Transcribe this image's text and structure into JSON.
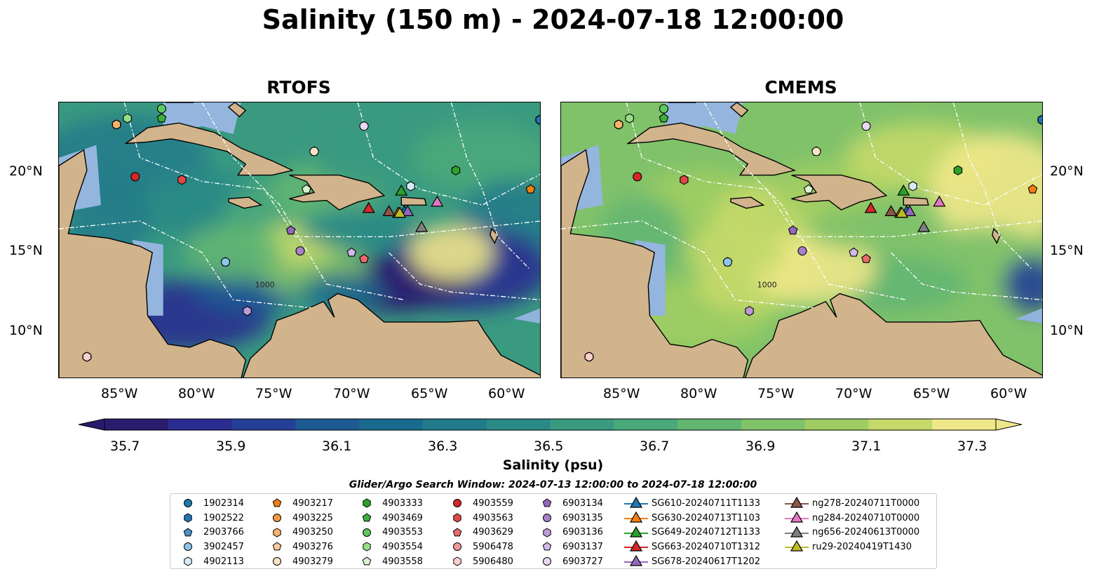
{
  "title": "Salinity (150 m) - 2024-07-18 12:00:00",
  "panels": [
    {
      "title": "RTOFS",
      "key": "rtofs"
    },
    {
      "title": "CMEMS",
      "key": "cmems"
    }
  ],
  "x_ticks": [
    "85°W",
    "80°W",
    "75°W",
    "70°W",
    "65°W",
    "60°W"
  ],
  "y_ticks": [
    "20°N",
    "15°N",
    "10°N"
  ],
  "contour_label": "1000",
  "colorbar": {
    "label": "Salinity (psu)",
    "range": [
      35.7,
      37.3
    ],
    "ticks": [
      "35.7",
      "35.9",
      "36.1",
      "36.3",
      "36.5",
      "36.7",
      "36.9",
      "37.1",
      "37.3"
    ],
    "colors": [
      "#2a1b6e",
      "#2a2d8f",
      "#253f96",
      "#1d5a92",
      "#1a6a8e",
      "#217b8a",
      "#2a8a86",
      "#399a80",
      "#4aa97a",
      "#63b672",
      "#80c26a",
      "#a0cd63",
      "#c4d96a",
      "#efe88a"
    ],
    "extend": "both"
  },
  "search_window": "Glider/Argo Search Window: 2024-07-13 12:00:00 to 2024-07-18 12:00:00",
  "legend": {
    "columns": [
      [
        {
          "label": "1902314",
          "marker": "circle",
          "color": "#1f77b4"
        },
        {
          "label": "1902522",
          "marker": "hexagon",
          "color": "#1f77b4"
        },
        {
          "label": "2903766",
          "marker": "pentagon",
          "color": "#4a90c9"
        },
        {
          "label": "3902457",
          "marker": "circle",
          "color": "#8ec3ea"
        },
        {
          "label": "4902113",
          "marker": "hexagon",
          "color": "#d6ebf8"
        }
      ],
      [
        {
          "label": "4903217",
          "marker": "pentagon",
          "color": "#f07f0e"
        },
        {
          "label": "4903225",
          "marker": "circle",
          "color": "#f59a3c"
        },
        {
          "label": "4903250",
          "marker": "hexagon",
          "color": "#f8b46a"
        },
        {
          "label": "4903276",
          "marker": "pentagon",
          "color": "#fbc997"
        },
        {
          "label": "4903279",
          "marker": "circle",
          "color": "#fde3c6"
        }
      ],
      [
        {
          "label": "4903333",
          "marker": "hexagon",
          "color": "#2ca02c"
        },
        {
          "label": "4903469",
          "marker": "pentagon",
          "color": "#3dae3d"
        },
        {
          "label": "4903553",
          "marker": "circle",
          "color": "#5ec95e"
        },
        {
          "label": "4903554",
          "marker": "hexagon",
          "color": "#98df8a"
        },
        {
          "label": "4903558",
          "marker": "pentagon",
          "color": "#d7f3cf"
        }
      ],
      [
        {
          "label": "4903559",
          "marker": "circle",
          "color": "#d62728"
        },
        {
          "label": "4903563",
          "marker": "hexagon",
          "color": "#e04848"
        },
        {
          "label": "4903629",
          "marker": "pentagon",
          "color": "#ea6b6b"
        },
        {
          "label": "5906478",
          "marker": "circle",
          "color": "#f29a9a"
        },
        {
          "label": "5906480",
          "marker": "hexagon",
          "color": "#fbd0d0"
        }
      ],
      [
        {
          "label": "6903134",
          "marker": "pentagon",
          "color": "#9467bd"
        },
        {
          "label": "6903135",
          "marker": "circle",
          "color": "#a880cc"
        },
        {
          "label": "6903136",
          "marker": "hexagon",
          "color": "#bd9bd9"
        },
        {
          "label": "6903137",
          "marker": "pentagon",
          "color": "#d2b9e7"
        },
        {
          "label": "6903727",
          "marker": "circle",
          "color": "#ead9f4"
        }
      ],
      [
        {
          "label": "SG610-20240711T1133",
          "marker": "triangle",
          "color": "#1f77b4"
        },
        {
          "label": "SG630-20240713T1103",
          "marker": "triangle",
          "color": "#ff7f0e"
        },
        {
          "label": "SG649-20240712T1133",
          "marker": "triangle",
          "color": "#2ca02c"
        },
        {
          "label": "SG663-20240710T1312",
          "marker": "triangle",
          "color": "#d62728"
        },
        {
          "label": "SG678-20240617T1202",
          "marker": "triangle",
          "color": "#9467bd"
        }
      ],
      [
        {
          "label": "ng278-20240711T0000",
          "marker": "triangle",
          "color": "#8c564b"
        },
        {
          "label": "ng284-20240710T0000",
          "marker": "triangle",
          "color": "#e377c2"
        },
        {
          "label": "ng656-20240613T0000",
          "marker": "triangle",
          "color": "#7f7f7f"
        },
        {
          "label": "ru29-20240419T1430",
          "marker": "triangle",
          "color": "#bcbd22"
        }
      ]
    ]
  },
  "map_extent": {
    "lon": [
      -89.2,
      -58.2
    ],
    "lat": [
      7.0,
      24.5
    ]
  },
  "floats": [
    {
      "id": "1902314",
      "lon": -58.3,
      "lat": 23.4
    },
    {
      "id": "1902522",
      "lon": -58.3,
      "lat": 23.4
    },
    {
      "id": "2903766",
      "lon": -78.5,
      "lat": 14.4
    },
    {
      "id": "3902457",
      "lon": -78.5,
      "lat": 14.4
    },
    {
      "id": "4902113",
      "lon": -66.6,
      "lat": 19.2
    },
    {
      "id": "4903217",
      "lon": -58.9,
      "lat": 19.0
    },
    {
      "id": "4903225",
      "lon": -85.5,
      "lat": 23.1
    },
    {
      "id": "4903250",
      "lon": -85.5,
      "lat": 23.1
    },
    {
      "id": "4903276",
      "lon": -72.8,
      "lat": 21.4
    },
    {
      "id": "4903279",
      "lon": -72.8,
      "lat": 21.4
    },
    {
      "id": "4903333",
      "lon": -63.7,
      "lat": 20.2
    },
    {
      "id": "4903469",
      "lon": -82.6,
      "lat": 23.5
    },
    {
      "id": "4903553",
      "lon": -82.6,
      "lat": 24.1
    },
    {
      "id": "4903554",
      "lon": -84.8,
      "lat": 23.5
    },
    {
      "id": "4903558",
      "lon": -73.3,
      "lat": 19.0
    },
    {
      "id": "4903559",
      "lon": -84.3,
      "lat": 19.8
    },
    {
      "id": "4903563",
      "lon": -81.3,
      "lat": 19.6
    },
    {
      "id": "4903629",
      "lon": -69.6,
      "lat": 14.6
    },
    {
      "id": "5906478",
      "lon": -87.4,
      "lat": 8.4
    },
    {
      "id": "5906480",
      "lon": -87.4,
      "lat": 8.4
    },
    {
      "id": "6903134",
      "lon": -74.3,
      "lat": 16.4
    },
    {
      "id": "6903135",
      "lon": -73.7,
      "lat": 15.1
    },
    {
      "id": "6903136",
      "lon": -77.1,
      "lat": 11.3
    },
    {
      "id": "6903137",
      "lon": -70.4,
      "lat": 15.0
    },
    {
      "id": "6903727",
      "lon": -69.6,
      "lat": 23.0
    }
  ],
  "gliders": [
    {
      "id": "SG610-20240711T1133",
      "lon": -67.0,
      "lat": 17.6
    },
    {
      "id": "SG630-20240713T1103",
      "lon": -67.4,
      "lat": 17.5
    },
    {
      "id": "SG649-20240712T1133",
      "lon": -67.2,
      "lat": 18.9
    },
    {
      "id": "SG663-20240710T1312",
      "lon": -69.3,
      "lat": 17.8
    },
    {
      "id": "SG678-20240617T1202",
      "lon": -66.8,
      "lat": 17.6
    },
    {
      "id": "ng278-20240711T0000",
      "lon": -68.0,
      "lat": 17.6
    },
    {
      "id": "ng284-20240710T0000",
      "lon": -64.9,
      "lat": 18.2
    },
    {
      "id": "ng656-20240613T0000",
      "lon": -65.9,
      "lat": 16.6
    },
    {
      "id": "ru29-20240419T1430",
      "lon": -67.3,
      "lat": 17.5
    }
  ]
}
